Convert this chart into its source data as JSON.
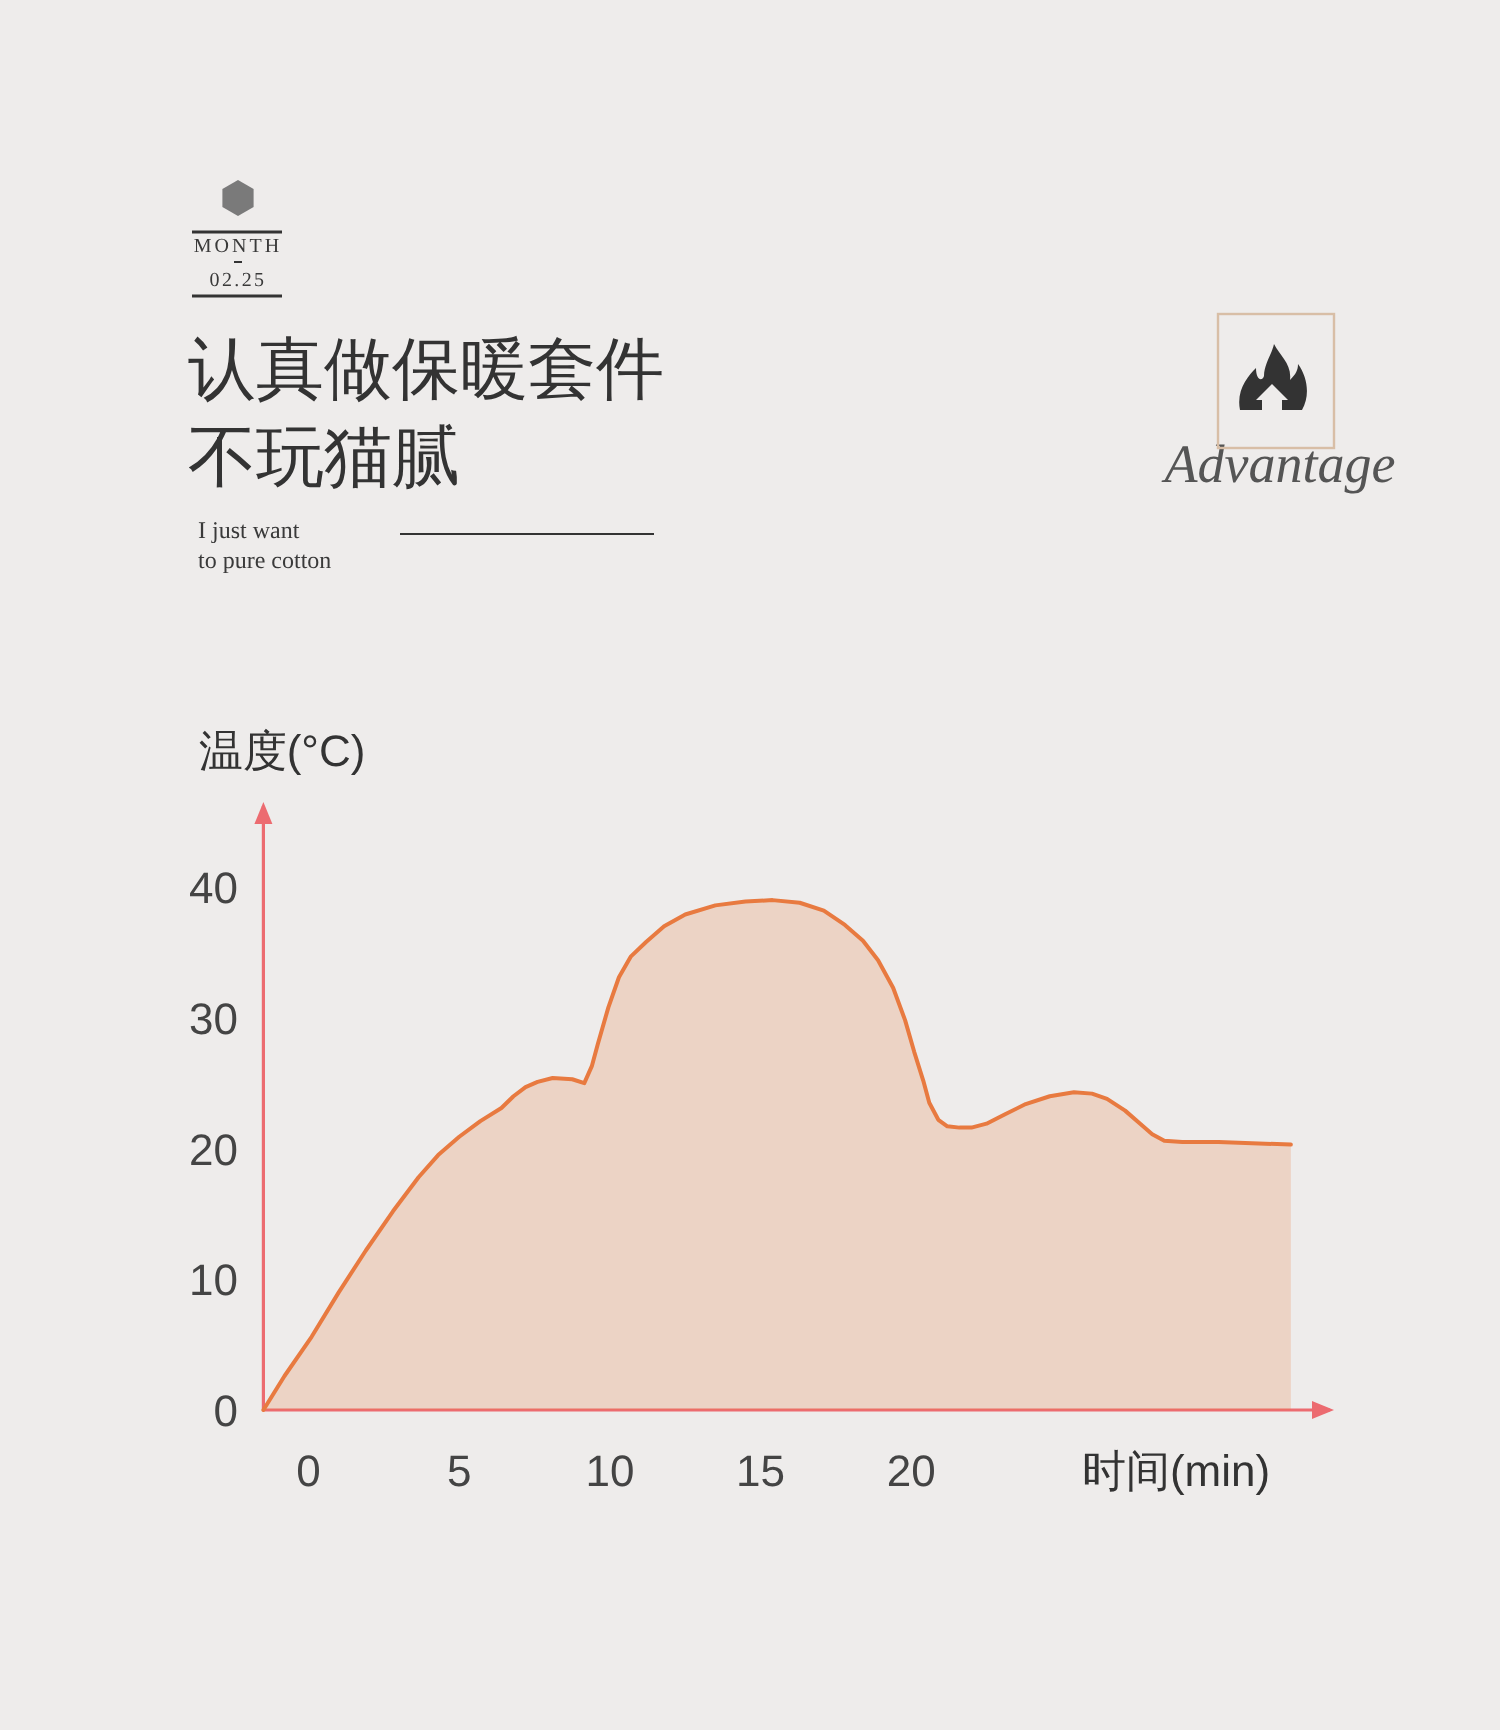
{
  "chart_data": {
    "type": "area",
    "title": "认真做保暖套件",
    "subtitle": "不玩猫腻",
    "xlabel": "时间(min)",
    "ylabel": "温度(°C)",
    "annotations": [
      "MONTH",
      "02.25",
      "I just want\nto pure cotton",
      "Advantage"
    ],
    "x": [
      -1.5,
      -0.8,
      0.1,
      1.0,
      1.9,
      2.8,
      3.65,
      4.3,
      5.0,
      5.7,
      6.4,
      6.8,
      7.2,
      7.6,
      8.1,
      8.75,
      9.15,
      9.4,
      9.6,
      9.95,
      10.3,
      10.7,
      11.2,
      11.8,
      12.5,
      13.5,
      14.5,
      15.4,
      16.3,
      17.1,
      17.8,
      18.4,
      18.9,
      19.4,
      19.8,
      20.1,
      20.4,
      20.6,
      20.9,
      21.2,
      21.6,
      22.0,
      22.5,
      23.1,
      23.8,
      24.6,
      25.4,
      26.0,
      26.5,
      27.1,
      27.6,
      28.0,
      28.4,
      29.0,
      30.2,
      32.6
    ],
    "values": [
      0,
      2.6,
      5.6,
      9.0,
      12.2,
      15.2,
      17.8,
      19.5,
      20.9,
      22.1,
      23.1,
      24.0,
      24.7,
      25.1,
      25.4,
      25.3,
      25.0,
      26.3,
      28.0,
      30.8,
      33.1,
      34.7,
      35.8,
      37.0,
      37.9,
      38.6,
      38.9,
      39.0,
      38.8,
      38.2,
      37.1,
      35.9,
      34.4,
      32.3,
      29.8,
      27.4,
      25.2,
      23.5,
      22.2,
      21.7,
      21.6,
      21.6,
      21.9,
      22.6,
      23.4,
      24.0,
      24.3,
      24.2,
      23.8,
      22.9,
      21.9,
      21.1,
      20.6,
      20.5,
      20.5,
      20.3
    ],
    "color": "#e87a40",
    "xlim": [
      -1.5,
      33.9
    ],
    "ylim": [
      0,
      46.2
    ],
    "xticks": [
      0,
      5,
      10,
      15,
      20
    ],
    "yticks": [
      0,
      10,
      20,
      30,
      40
    ]
  }
}
